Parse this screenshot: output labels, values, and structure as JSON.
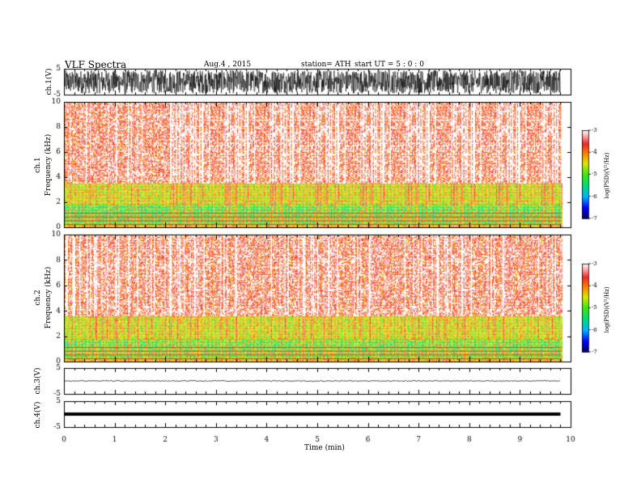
{
  "header": {
    "title": "VLF  Spectra",
    "date": "Aug.4   , 2015",
    "station": "station= ATH",
    "start": "start  UT  =    5  : 0  : 0"
  },
  "chart_data": [
    {
      "type": "line",
      "panel": "ch1-waveform",
      "ylabel": "ch.1(V)",
      "ylim": [
        -5,
        5
      ],
      "yticks": [
        "5",
        "-5"
      ],
      "xlim": [
        0,
        10
      ],
      "description_values": {
        "amplitude_range_V": [
          -4.5,
          4.5
        ],
        "data_end_min": 9.8
      }
    },
    {
      "type": "heatmap",
      "panel": "ch1-spectrogram",
      "ylabel_1": "ch.1",
      "ylabel_2": "Frequency  (kHz)",
      "ylim": [
        0,
        10
      ],
      "yticks": [
        "0",
        "2",
        "4",
        "6",
        "8",
        "10"
      ],
      "xlim": [
        0,
        10
      ],
      "bands": [
        {
          "freq_kHz": [
            0,
            0.3
          ],
          "logPSD": -4.2
        },
        {
          "freq_kHz": [
            0.3,
            1.8
          ],
          "logPSD": -5.0
        },
        {
          "freq_kHz": [
            1.8,
            3.5
          ],
          "logPSD": -4.4
        },
        {
          "freq_kHz": [
            3.5,
            10
          ],
          "logPSD": -3.6
        }
      ],
      "colorbar": {
        "label": "log(PSD)(V²/Hz)",
        "ticks": [
          "-3",
          "-4",
          "-5",
          "-6",
          "-7"
        ],
        "range": [
          -7,
          -3
        ]
      }
    },
    {
      "type": "heatmap",
      "panel": "ch2-spectrogram",
      "ylabel_1": "ch.2",
      "ylabel_2": "Frequency  (kHz)",
      "ylim": [
        0,
        10
      ],
      "yticks": [
        "0",
        "2",
        "4",
        "6",
        "8",
        "10"
      ],
      "xlim": [
        0,
        10
      ],
      "bands": [
        {
          "freq_kHz": [
            0,
            0.3
          ],
          "logPSD": -4.2
        },
        {
          "freq_kHz": [
            0.3,
            1.8
          ],
          "logPSD": -4.9
        },
        {
          "freq_kHz": [
            1.8,
            3.6
          ],
          "logPSD": -4.4
        },
        {
          "freq_kHz": [
            3.6,
            10
          ],
          "logPSD": -3.6
        }
      ],
      "colorbar": {
        "label": "log(PSD)(V²/Hz)",
        "ticks": [
          "-3",
          "-4",
          "-5",
          "-6",
          "-7"
        ],
        "range": [
          -7,
          -3
        ]
      }
    },
    {
      "type": "line",
      "panel": "ch3-waveform",
      "ylabel": "ch.3(V)",
      "ylim": [
        -5,
        5
      ],
      "yticks": [
        "5",
        "-5"
      ],
      "xlim": [
        0,
        10
      ],
      "description_values": {
        "level_V": 0.0,
        "data_end_min": 9.8
      }
    },
    {
      "type": "line",
      "panel": "ch4-waveform",
      "ylabel": "ch.4(V)",
      "ylim": [
        -5,
        5
      ],
      "yticks": [
        "5",
        "-5"
      ],
      "xlim": [
        0,
        10
      ],
      "description_values": {
        "level_V": 0.0,
        "data_end_min": 9.8
      },
      "xlabel": "Time  (min)",
      "xticks": [
        "0",
        "1",
        "2",
        "3",
        "4",
        "5",
        "6",
        "7",
        "8",
        "9",
        "10"
      ]
    }
  ]
}
